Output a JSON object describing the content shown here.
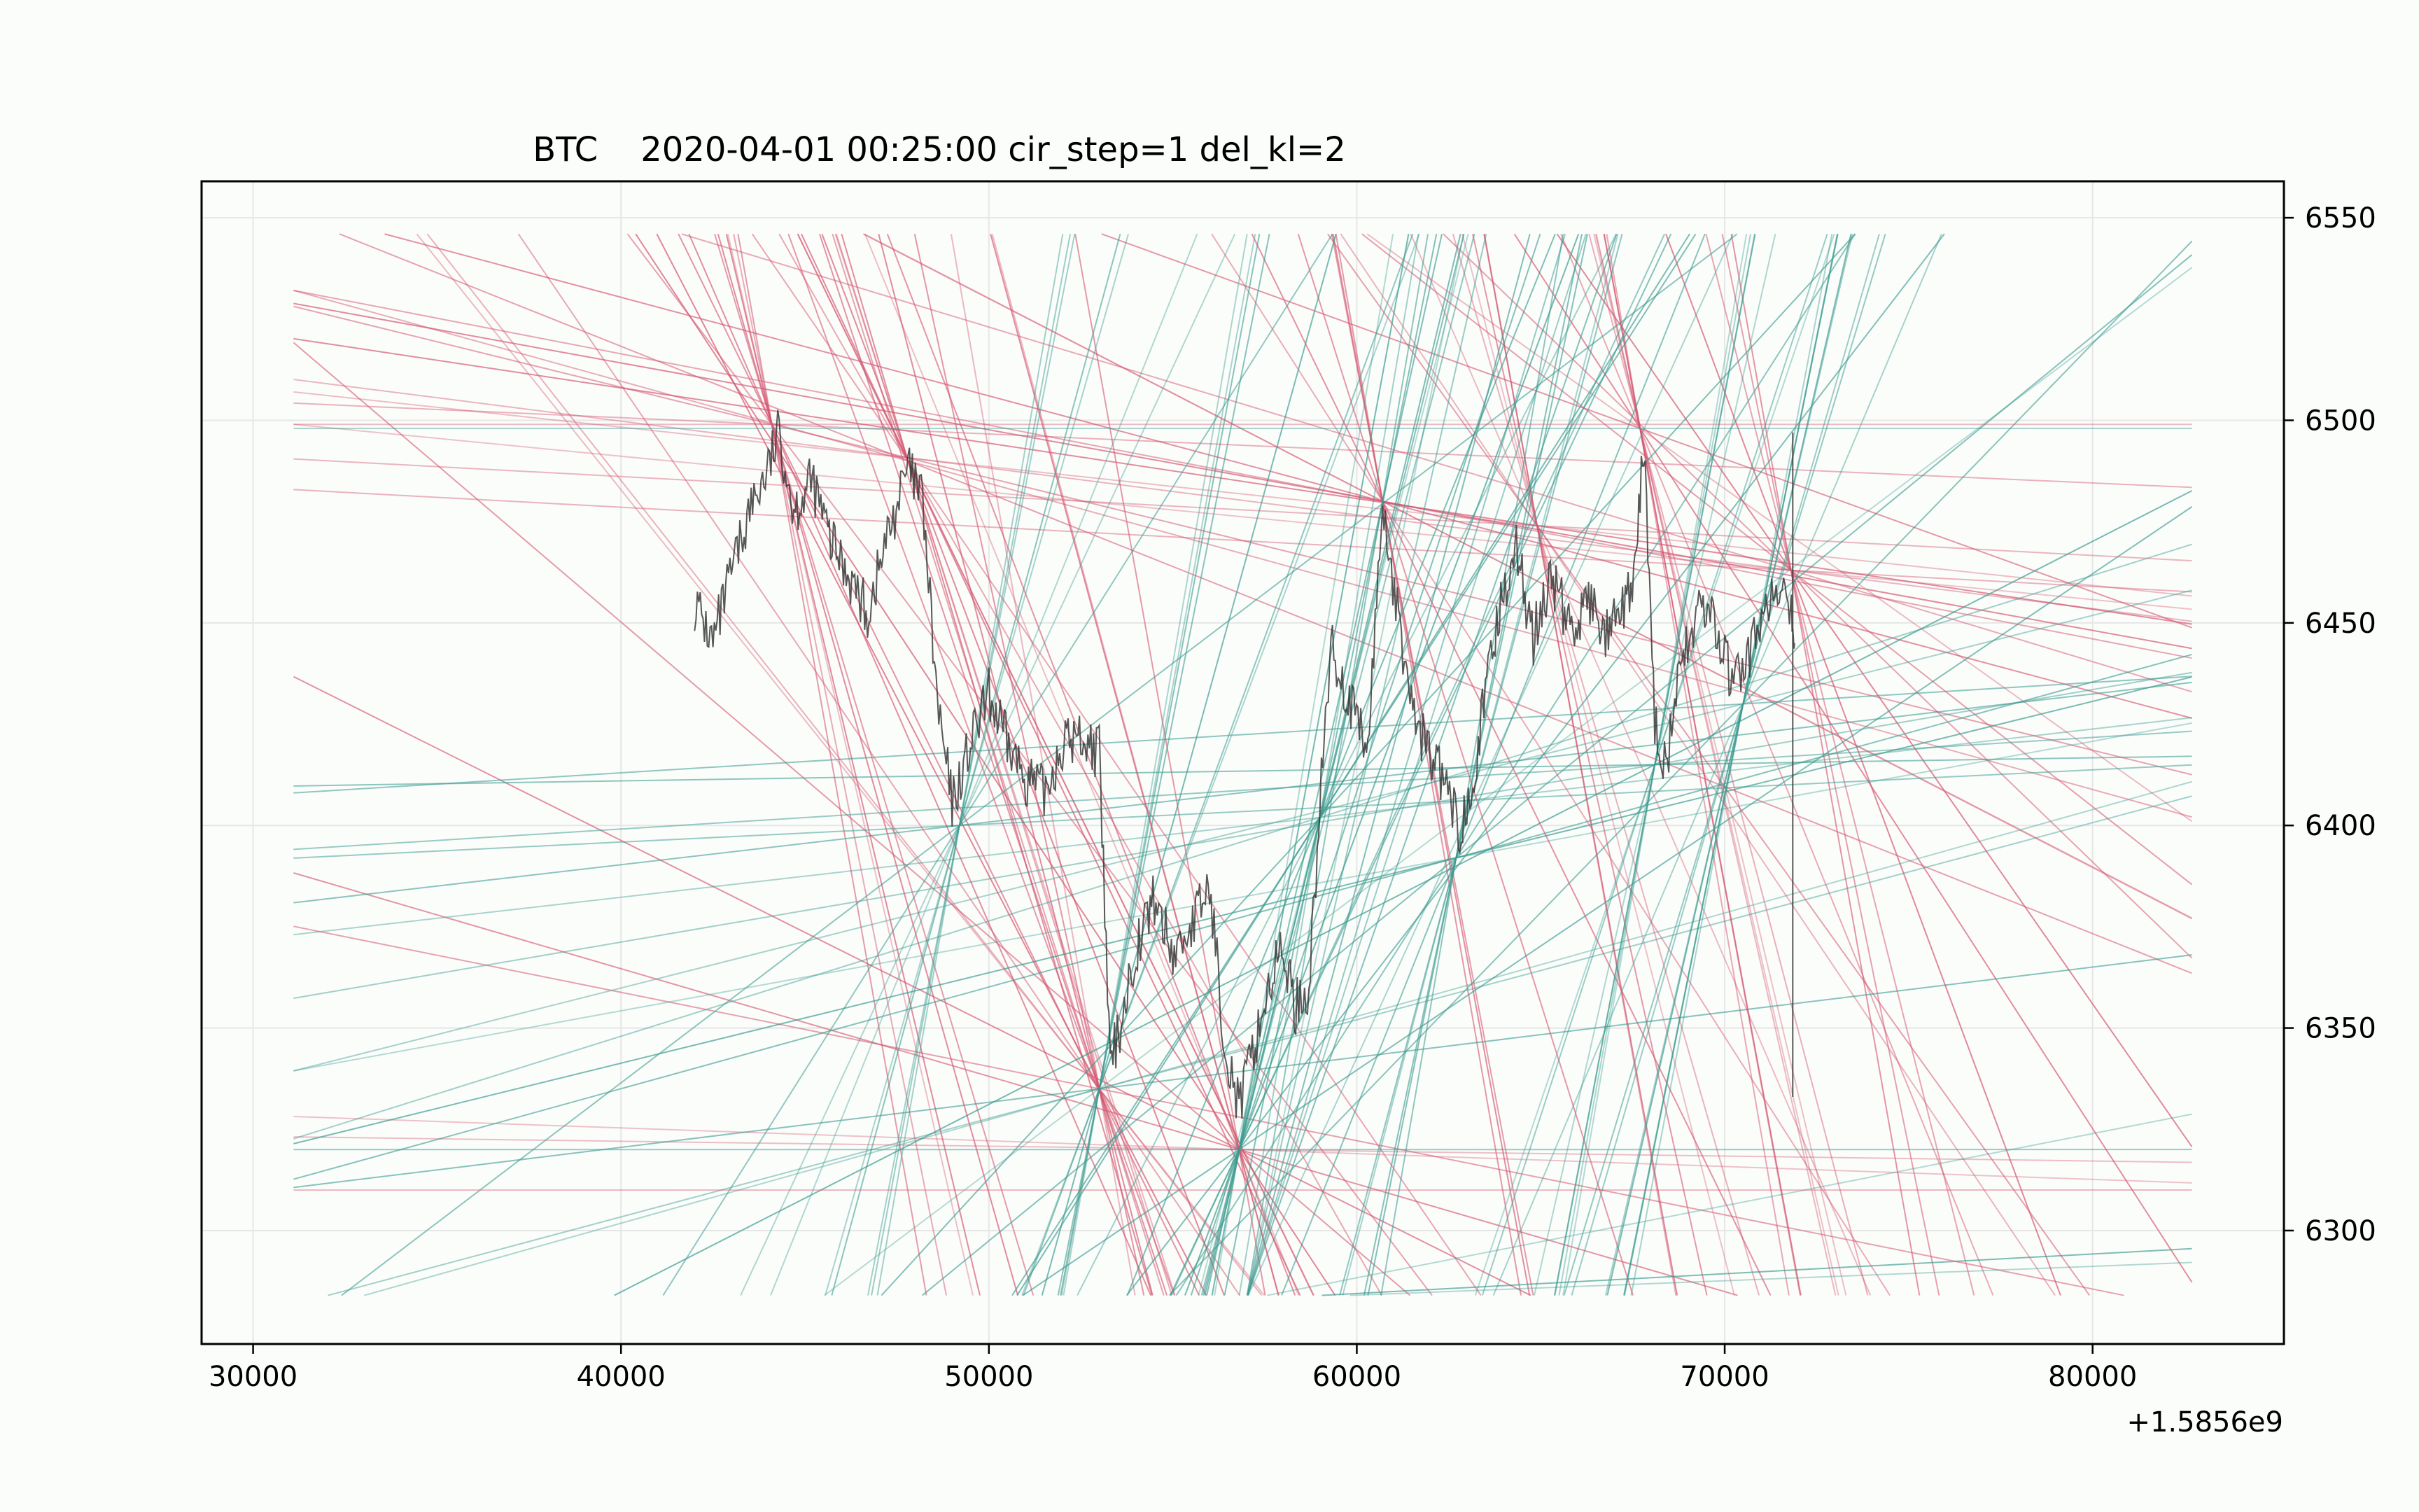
{
  "chart_data": {
    "type": "line",
    "title": "BTC    2020-04-01 00:25:00 cir_step=1 del_kl=2",
    "xlabel": "",
    "ylabel": "",
    "x_offset_label": "+1.5856e9",
    "xlim": [
      28600,
      85200
    ],
    "ylim": [
      6272,
      6559
    ],
    "grid": true,
    "y_axis_side": "right",
    "x_ticks": [
      30000,
      40000,
      50000,
      60000,
      70000,
      80000
    ],
    "x_tick_labels": [
      "30000",
      "40000",
      "50000",
      "60000",
      "70000",
      "80000"
    ],
    "y_ticks": [
      6300,
      6350,
      6400,
      6450,
      6500,
      6550
    ],
    "y_tick_labels": [
      "6300",
      "6350",
      "6400",
      "6450",
      "6500",
      "6550"
    ],
    "colors": {
      "price": "#3a3a3a",
      "resistance_lines": "#d4556f",
      "support_lines": "#3a9a8e",
      "grid": "#e6e6e6",
      "axes": "#000000",
      "background": "#fbfdfb"
    },
    "series": [
      {
        "role": "price",
        "x": [
          42000,
          42500,
          43000,
          43500,
          44000,
          44300,
          44700,
          45200,
          45700,
          46200,
          46700,
          47200,
          47800,
          48200,
          48600,
          49000,
          49500,
          50000,
          50500,
          51000,
          51500,
          52000,
          52500,
          53000,
          53300,
          53600,
          54000,
          54500,
          55000,
          55500,
          56000,
          56400,
          56800,
          57200,
          57600,
          58000,
          58300,
          58700,
          59000,
          59300,
          59800,
          60300,
          60700,
          61100,
          61600,
          62000,
          62400,
          62800,
          63300,
          63800,
          64300,
          64800,
          65300,
          65800,
          66300,
          66800,
          67300,
          67600,
          67800,
          68100,
          68400,
          68800,
          69300,
          69800,
          70200,
          70600,
          71000,
          71400,
          71800,
          71900
        ],
        "y": [
          6455,
          6445,
          6462,
          6478,
          6488,
          6497,
          6478,
          6485,
          6470,
          6462,
          6452,
          6470,
          6488,
          6480,
          6430,
          6405,
          6420,
          6432,
          6420,
          6412,
          6408,
          6420,
          6422,
          6418,
          6340,
          6352,
          6370,
          6382,
          6368,
          6375,
          6385,
          6348,
          6330,
          6345,
          6360,
          6370,
          6355,
          6360,
          6405,
          6445,
          6430,
          6418,
          6480,
          6452,
          6425,
          6418,
          6410,
          6398,
          6420,
          6450,
          6470,
          6446,
          6462,
          6448,
          6455,
          6447,
          6453,
          6465,
          6495,
          6425,
          6415,
          6438,
          6455,
          6448,
          6435,
          6440,
          6452,
          6457,
          6452,
          6445
        ]
      },
      {
        "role": "resistance_lines",
        "note": "fan of downward-sloping trend lines radiating from pivot highs"
      },
      {
        "role": "support_lines",
        "note": "fan of upward-sloping trend lines radiating from pivot lows"
      }
    ]
  }
}
